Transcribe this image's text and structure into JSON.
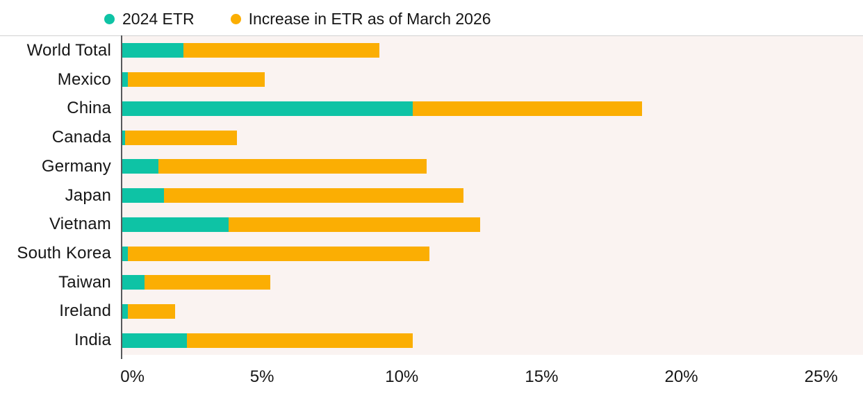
{
  "legend": {
    "items": [
      {
        "label": "2024 ETR",
        "color": "#0ec3a5"
      },
      {
        "label": "Increase in ETR as of March 2026",
        "color": "#fbae03"
      }
    ]
  },
  "chart_data": {
    "type": "bar",
    "orientation": "horizontal",
    "stacked": true,
    "title": "",
    "xlabel": "",
    "ylabel": "",
    "grid": false,
    "legend_position": "top",
    "categories": [
      "World Total",
      "Mexico",
      "China",
      "Canada",
      "Germany",
      "Japan",
      "Vietnam",
      "South Korea",
      "Taiwan",
      "Ireland",
      "India"
    ],
    "series": [
      {
        "name": "2024 ETR",
        "color": "#0ec3a5",
        "values": [
          2.2,
          0.2,
          10.4,
          0.1,
          1.3,
          1.5,
          3.8,
          0.2,
          0.8,
          0.2,
          2.3
        ]
      },
      {
        "name": "Increase in ETR as of March 2026",
        "color": "#fbae03",
        "values": [
          7.0,
          4.9,
          8.2,
          4.0,
          9.6,
          10.7,
          9.0,
          10.8,
          4.5,
          1.7,
          8.1
        ]
      }
    ],
    "totals": [
      9.2,
      5.1,
      18.6,
      4.1,
      10.9,
      12.2,
      12.8,
      11.0,
      5.3,
      1.9,
      10.4
    ],
    "x_ticks": [
      "0%",
      "5%",
      "10%",
      "15%",
      "20%",
      "25%"
    ],
    "x_tick_values": [
      0,
      5,
      10,
      15,
      20,
      25
    ],
    "xlim": [
      0,
      26.5
    ]
  },
  "colors": {
    "plot_background": "#faf3f1",
    "axis_line": "#58595b",
    "top_border": "#d2d2d2",
    "text": "#161616"
  }
}
